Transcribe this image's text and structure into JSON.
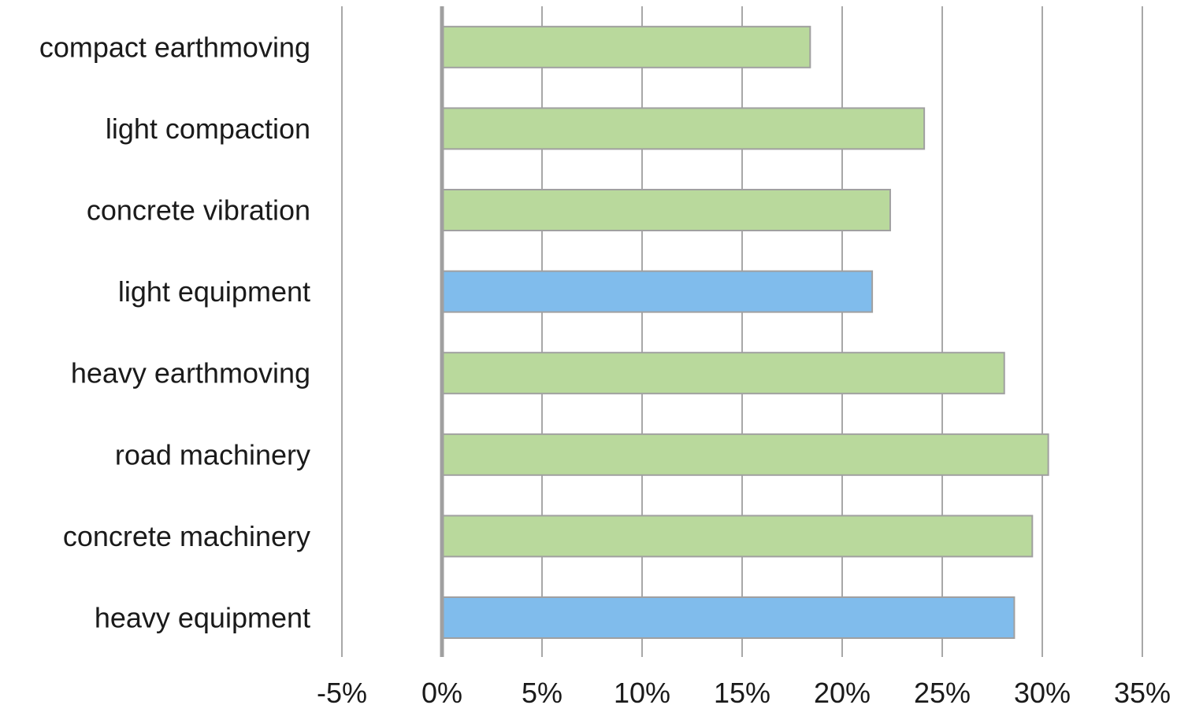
{
  "chart_data": {
    "type": "bar",
    "orientation": "horizontal",
    "categories": [
      "compact earthmoving",
      "light compaction",
      "concrete vibration",
      "light equipment",
      "heavy earthmoving",
      "road machinery",
      "concrete machinery",
      "heavy equipment"
    ],
    "values": [
      18.4,
      24.1,
      22.4,
      21.5,
      28.1,
      30.3,
      29.5,
      28.6
    ],
    "bar_colors": [
      "#b9d99c",
      "#b9d99c",
      "#b9d99c",
      "#80bcec",
      "#b9d99c",
      "#b9d99c",
      "#b9d99c",
      "#80bcec"
    ],
    "bar_outline": "#a0a0a0",
    "xlim": [
      -5,
      35
    ],
    "xticks": [
      -5,
      0,
      5,
      10,
      15,
      20,
      25,
      30,
      35
    ],
    "xtick_labels": [
      "-5%",
      "0%",
      "5%",
      "10%",
      "15%",
      "20%",
      "25%",
      "30%",
      "35%"
    ],
    "unit": "%",
    "grid": true,
    "gridline_color": "#a8a8a8",
    "zero_axis_color": "#a0a0a0",
    "title": "",
    "xlabel": "",
    "ylabel": "",
    "legend": "none"
  }
}
